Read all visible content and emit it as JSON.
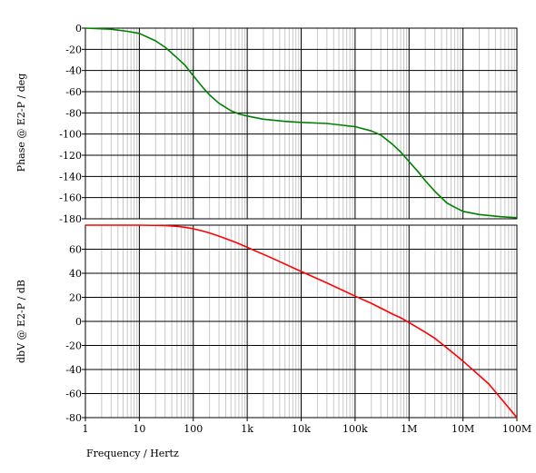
{
  "chart_data": [
    {
      "type": "line",
      "ylabel": "Phase @ E2-P / deg",
      "x_scale": "log",
      "xlim": [
        1,
        100000000
      ],
      "ylim": [
        -180,
        0
      ],
      "y_ticks": [
        0,
        -20,
        -40,
        -60,
        -80,
        -100,
        -120,
        -140,
        -160,
        -180
      ],
      "grid": true,
      "series": [
        {
          "color": "#008000",
          "x": [
            1,
            3,
            6,
            10,
            20,
            30,
            50,
            70,
            100,
            150,
            200,
            300,
            500,
            700,
            1000,
            2000,
            5000,
            10000,
            30000,
            100000,
            200000,
            300000,
            500000,
            700000,
            1000000,
            1500000,
            2000000,
            3000000,
            5000000,
            7000000,
            10000000,
            20000000,
            50000000,
            100000000
          ],
          "y": [
            0,
            -1,
            -3,
            -5,
            -12,
            -18,
            -28,
            -35,
            -45,
            -56,
            -63,
            -71,
            -78,
            -81,
            -83,
            -86,
            -88,
            -89,
            -90,
            -93,
            -97,
            -101,
            -110,
            -117,
            -126,
            -136,
            -144,
            -154,
            -165,
            -169,
            -173,
            -176,
            -178,
            -179
          ]
        }
      ]
    },
    {
      "type": "line",
      "ylabel": "dbV @ E2-P / dB",
      "xlabel": "Frequency / Hertz",
      "x_scale": "log",
      "xlim": [
        1,
        100000000
      ],
      "ylim": [
        -80,
        80
      ],
      "x_tick_labels": [
        "1",
        "10",
        "100",
        "1k",
        "10k",
        "100k",
        "1M",
        "10M",
        "100M"
      ],
      "y_ticks": [
        60,
        40,
        20,
        0,
        -20,
        -40,
        -60,
        -80
      ],
      "grid": true,
      "series": [
        {
          "color": "#ff0000",
          "x": [
            1,
            10,
            30,
            50,
            70,
            100,
            150,
            200,
            300,
            500,
            700,
            1000,
            3000,
            10000,
            30000,
            100000,
            200000,
            300000,
            500000,
            700000,
            1000000,
            2000000,
            3000000,
            5000000,
            10000000,
            30000000,
            100000000
          ],
          "y": [
            80,
            80,
            79.6,
            79,
            78.3,
            77,
            75.1,
            73.5,
            70.9,
            67.2,
            64.6,
            61.6,
            52.2,
            41.5,
            32,
            21,
            15,
            11,
            6,
            3,
            -1,
            -9,
            -14,
            -22,
            -33,
            -52,
            -80
          ]
        }
      ]
    }
  ]
}
